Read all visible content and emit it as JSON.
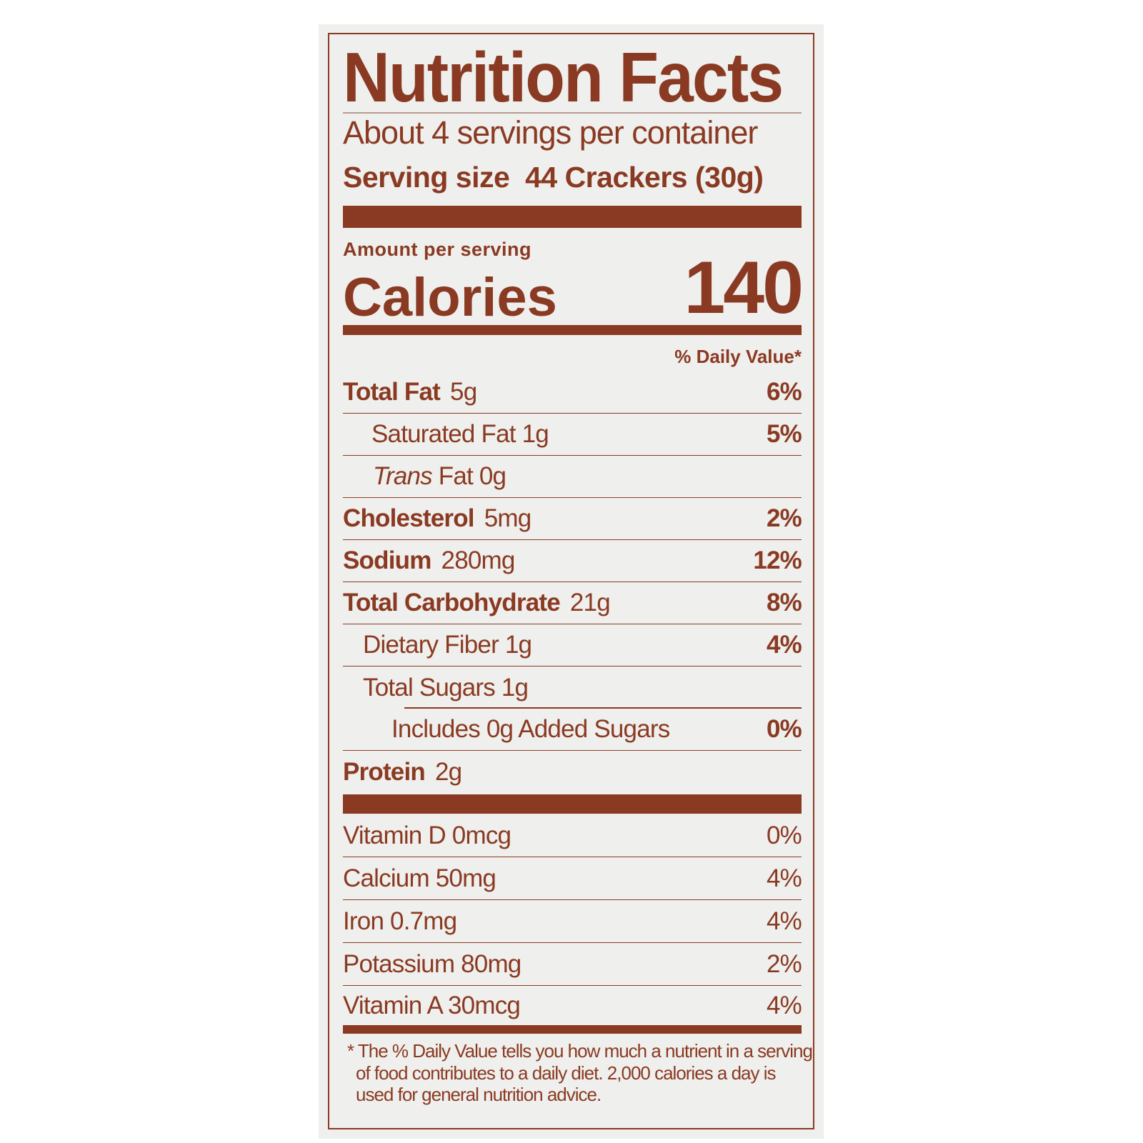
{
  "title": "Nutrition Facts",
  "servings_per_container": "About 4 servings per container",
  "serving_size_label": "Serving size",
  "serving_size_value": "44 Crackers (30g)",
  "amount_per_serving": "Amount per serving",
  "calories_label": "Calories",
  "calories_value": "140",
  "dv_header": "% Daily Value*",
  "nutrients": [
    {
      "name": "Total Fat",
      "amount": "5g",
      "dv": "6%"
    },
    {
      "name": "Saturated Fat 1g",
      "amount": "",
      "dv": "5%"
    },
    {
      "name_italic": "Trans",
      "name": " Fat 0g",
      "amount": "",
      "dv": ""
    },
    {
      "name": "Cholesterol",
      "amount": "5mg",
      "dv": "2%"
    },
    {
      "name": "Sodium",
      "amount": "280mg",
      "dv": "12%"
    },
    {
      "name": "Total Carbohydrate",
      "amount": "21g",
      "dv": "8%"
    },
    {
      "name": "Dietary Fiber 1g",
      "amount": "",
      "dv": "4%"
    },
    {
      "name": "Total Sugars 1g",
      "amount": "",
      "dv": ""
    },
    {
      "name": "Includes 0g Added Sugars",
      "amount": "",
      "dv": "0%"
    },
    {
      "name": "Protein",
      "amount": "2g",
      "dv": ""
    }
  ],
  "vitamins": [
    {
      "name": "Vitamin D 0mcg",
      "dv": "0%"
    },
    {
      "name": "Calcium 50mg",
      "dv": "4%"
    },
    {
      "name": "Iron 0.7mg",
      "dv": "4%"
    },
    {
      "name": "Potassium 80mg",
      "dv": "2%"
    },
    {
      "name": "Vitamin A 30mcg",
      "dv": "4%"
    }
  ],
  "footnote": "* The % Daily Value tells you how much a nutrient in a serving of food contributes to a daily diet. 2,000 calories a day is used for general nutrition advice.",
  "colors": {
    "ink": "#8a3a22",
    "background": "#efefed"
  }
}
